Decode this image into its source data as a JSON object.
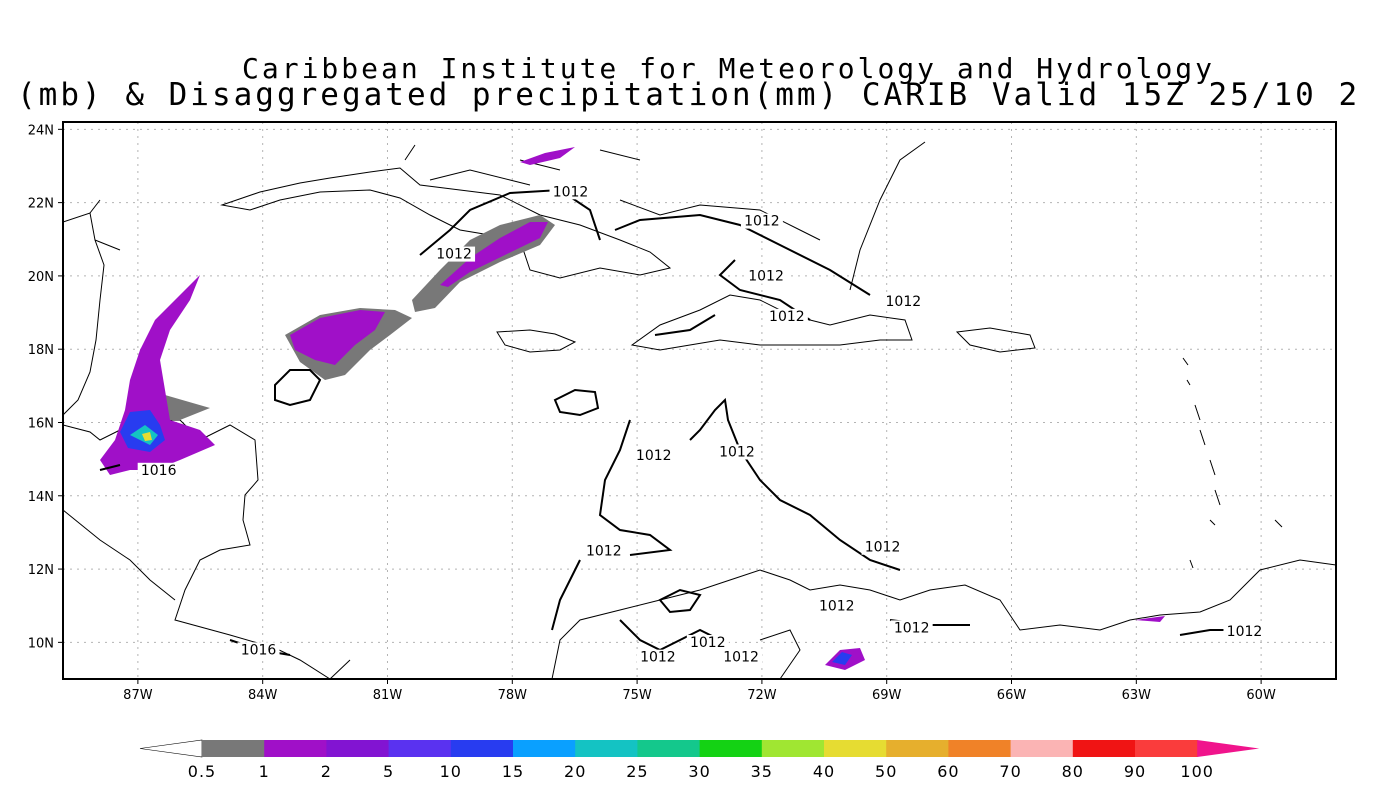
{
  "title": {
    "line1": "Caribbean Institute for Meteorology and Hydrology",
    "line2": "(mb) & Disaggregated precipitation(mm) CARIB Valid 15Z 25/10 2"
  },
  "axes": {
    "lat_labels": [
      "24N",
      "22N",
      "20N",
      "18N",
      "16N",
      "14N",
      "12N",
      "10N"
    ],
    "lat_values": [
      24,
      22,
      20,
      18,
      16,
      14,
      12,
      10
    ],
    "lon_labels": [
      "87W",
      "84W",
      "81W",
      "78W",
      "75W",
      "72W",
      "69W",
      "66W",
      "63W",
      "60W"
    ],
    "lon_values": [
      -87,
      -84,
      -81,
      -78,
      -75,
      -72,
      -69,
      -66,
      -63,
      -60
    ],
    "lat_range": [
      9,
      24.2
    ],
    "lon_range": [
      -88.8,
      -58.2
    ],
    "grid": true
  },
  "isobar_labels": [
    {
      "text": "1012",
      "lon": -79.4,
      "lat": 20.5
    },
    {
      "text": "1012",
      "lon": -76.6,
      "lat": 22.2
    },
    {
      "text": "1012",
      "lon": -72.0,
      "lat": 21.4
    },
    {
      "text": "1012",
      "lon": -71.9,
      "lat": 19.9
    },
    {
      "text": "1012",
      "lon": -68.6,
      "lat": 19.2
    },
    {
      "text": "1012",
      "lon": -71.4,
      "lat": 18.8
    },
    {
      "text": "1012",
      "lon": -74.6,
      "lat": 15.0
    },
    {
      "text": "1012",
      "lon": -72.6,
      "lat": 15.1
    },
    {
      "text": "1012",
      "lon": -75.8,
      "lat": 12.4
    },
    {
      "text": "1012",
      "lon": -69.1,
      "lat": 12.5
    },
    {
      "text": "1012",
      "lon": -70.2,
      "lat": 10.9
    },
    {
      "text": "1012",
      "lon": -68.4,
      "lat": 10.3
    },
    {
      "text": "1012",
      "lon": -60.4,
      "lat": 10.2
    },
    {
      "text": "1012",
      "lon": -73.3,
      "lat": 9.9
    },
    {
      "text": "1012",
      "lon": -74.5,
      "lat": 9.5
    },
    {
      "text": "1012",
      "lon": -72.5,
      "lat": 9.5
    },
    {
      "text": "1016",
      "lon": -86.5,
      "lat": 14.6
    },
    {
      "text": "1016",
      "lon": -84.1,
      "lat": 9.7
    }
  ],
  "colorbar": {
    "labels": [
      "0.5",
      "1",
      "2",
      "5",
      "10",
      "15",
      "20",
      "25",
      "30",
      "35",
      "40",
      "50",
      "60",
      "70",
      "80",
      "90",
      "100"
    ],
    "colors": [
      "#787878",
      "#a010c8",
      "#8214d2",
      "#5a32f0",
      "#283cf0",
      "#0aa0ff",
      "#14c3c3",
      "#14c88c",
      "#14d214",
      "#a0e632",
      "#e6dc32",
      "#e6af2d",
      "#f08228",
      "#fbb4b4",
      "#f01414",
      "#fa3c3c"
    ],
    "under_color": "#ffffff",
    "over_color": "#f0148c"
  },
  "colors": {
    "land_outline": "#000000",
    "isobar": "#000000",
    "grid": "#b4b4b4"
  }
}
